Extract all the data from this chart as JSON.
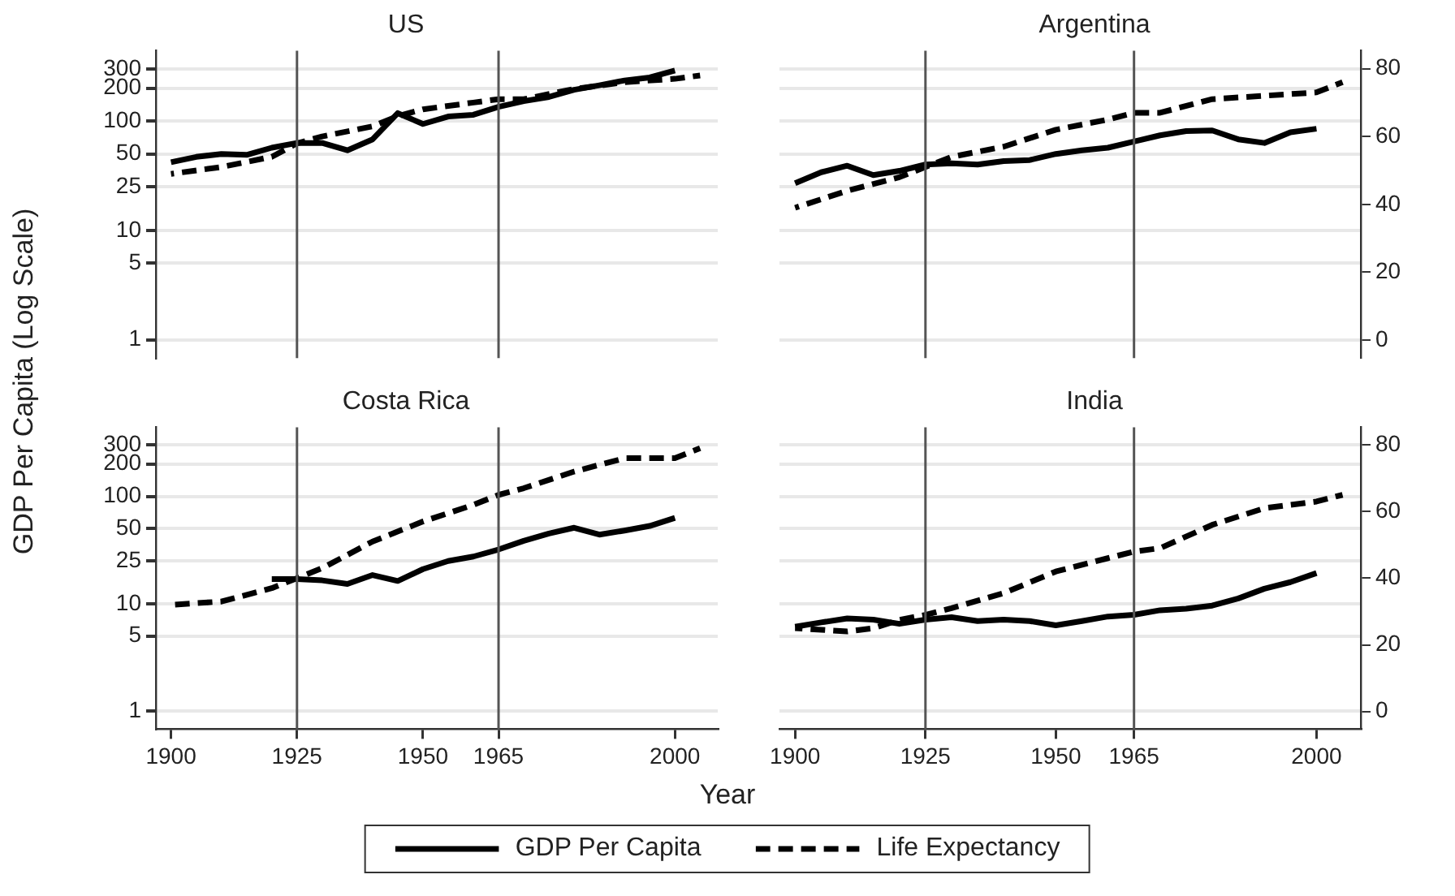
{
  "chart_data": [
    {
      "type": "line",
      "title": "US",
      "ylabel": "GDP Per Capita (Log Scale)",
      "log": "y",
      "grid": "y",
      "tick_labels": "y",
      "xlim": [
        1897,
        2008.5
      ],
      "ylim": [
        0.68,
        440
      ],
      "yticks": [
        1,
        5,
        10,
        25,
        50,
        100,
        200,
        300
      ],
      "y2lim": [
        -5.3,
        85.3
      ],
      "ref_lines": [
        {
          "axis": "x",
          "value": 1925,
          "color": "#555555"
        },
        {
          "axis": "x",
          "value": 1965,
          "color": "#555555"
        }
      ],
      "series": [
        {
          "color": "#000000",
          "line_style": "solid",
          "x": [
            1900,
            1905,
            1910,
            1915,
            1920,
            1925,
            1930,
            1935,
            1940,
            1945,
            1950,
            1955,
            1960,
            1965,
            1970,
            1975,
            1980,
            1985,
            1990,
            1995,
            2000
          ],
          "values": [
            42,
            47,
            50,
            49,
            57,
            63,
            63,
            54,
            68,
            118,
            94,
            110,
            114,
            135,
            152,
            166,
            193,
            212,
            235,
            250,
            290
          ]
        },
        {
          "color": "#000000",
          "line_style": "dashed",
          "axis": "y2",
          "x": [
            1900,
            1910,
            1920,
            1925,
            1930,
            1940,
            1945,
            1950,
            1960,
            1965,
            1970,
            1980,
            1990,
            2000,
            2005
          ],
          "values": [
            49,
            51,
            54,
            58,
            60,
            63,
            66,
            68,
            70,
            71,
            71,
            74,
            76,
            77,
            78
          ]
        }
      ]
    },
    {
      "type": "line",
      "title": "Argentina",
      "log": "y",
      "grid": "y",
      "xlim": [
        1897,
        2008.5
      ],
      "ylim": [
        0.68,
        440
      ],
      "y2lim": [
        -5.3,
        85.3
      ],
      "y2ticks": [
        0,
        20,
        40,
        60,
        80
      ],
      "ref_lines": [
        {
          "axis": "x",
          "value": 1925,
          "color": "#555555"
        },
        {
          "axis": "x",
          "value": 1965,
          "color": "#555555"
        }
      ],
      "series": [
        {
          "color": "#000000",
          "line_style": "solid",
          "x": [
            1900,
            1905,
            1910,
            1915,
            1920,
            1925,
            1930,
            1935,
            1940,
            1945,
            1950,
            1955,
            1960,
            1965,
            1970,
            1975,
            1980,
            1985,
            1990,
            1995,
            2000
          ],
          "values": [
            27,
            34,
            39,
            32,
            35,
            40,
            41,
            40,
            43,
            44,
            50,
            54,
            57,
            65,
            74,
            81,
            82,
            68,
            63,
            79,
            85
          ]
        },
        {
          "color": "#000000",
          "line_style": "dashed",
          "axis": "y2",
          "x": [
            1900,
            1910,
            1920,
            1925,
            1930,
            1940,
            1950,
            1960,
            1965,
            1970,
            1980,
            1990,
            2000,
            2005
          ],
          "values": [
            39,
            44,
            48,
            51,
            54,
            57,
            62,
            65,
            67,
            67,
            71,
            72,
            73,
            76
          ]
        }
      ]
    },
    {
      "type": "line",
      "title": "Costa Rica",
      "xlabel": "Year",
      "log": "y",
      "grid": "y",
      "xlim": [
        1897,
        2008.5
      ],
      "xticks": [
        1900,
        1925,
        1950,
        1965,
        2000
      ],
      "ylim": [
        0.68,
        440
      ],
      "yticks": [
        1,
        5,
        10,
        25,
        50,
        100,
        200,
        300
      ],
      "y2lim": [
        -5.3,
        85.3
      ],
      "ref_lines": [
        {
          "axis": "x",
          "value": 1925,
          "color": "#555555"
        },
        {
          "axis": "x",
          "value": 1965,
          "color": "#555555"
        }
      ],
      "series": [
        {
          "color": "#000000",
          "line_style": "solid",
          "x": [
            1920,
            1925,
            1930,
            1935,
            1940,
            1945,
            1950,
            1955,
            1960,
            1965,
            1970,
            1975,
            1980,
            1985,
            1990,
            1995,
            2000
          ],
          "values": [
            17,
            17,
            16.5,
            15.3,
            18.5,
            16.3,
            21,
            25,
            27.5,
            32,
            38.5,
            45,
            51,
            44,
            48,
            53,
            63
          ]
        },
        {
          "color": "#000000",
          "line_style": "dashed",
          "axis": "y2",
          "x": [
            1900,
            1910,
            1920,
            1925,
            1930,
            1940,
            1950,
            1960,
            1965,
            1970,
            1980,
            1990,
            2000,
            2005
          ],
          "values": [
            32,
            33,
            37,
            40,
            43,
            51,
            57,
            62,
            65,
            67,
            72,
            76,
            76,
            79
          ]
        }
      ]
    },
    {
      "type": "line",
      "title": "India",
      "legend": "bottom",
      "log": "y",
      "grid": "y",
      "xlim": [
        1897,
        2008.5
      ],
      "xticks": [
        1900,
        1925,
        1950,
        1965,
        2000
      ],
      "ylim": [
        0.68,
        440
      ],
      "y2lim": [
        -5.3,
        85.3
      ],
      "y2ticks": [
        0,
        20,
        40,
        60,
        80
      ],
      "ref_lines": [
        {
          "axis": "x",
          "value": 1925,
          "color": "#555555"
        },
        {
          "axis": "x",
          "value": 1965,
          "color": "#555555"
        }
      ],
      "series": [
        {
          "name": "GDP Per Capita",
          "color": "#000000",
          "line_style": "solid",
          "x": [
            1900,
            1905,
            1910,
            1915,
            1920,
            1925,
            1930,
            1935,
            1940,
            1945,
            1950,
            1955,
            1960,
            1965,
            1970,
            1975,
            1980,
            1985,
            1990,
            1995,
            2000
          ],
          "values": [
            6.1,
            6.7,
            7.3,
            7.1,
            6.5,
            7.1,
            7.5,
            6.9,
            7.1,
            6.9,
            6.3,
            6.9,
            7.6,
            7.9,
            8.7,
            9,
            9.6,
            11.2,
            13.8,
            15.9,
            19.3
          ]
        },
        {
          "name": "Life Expectancy",
          "color": "#000000",
          "line_style": "dashed",
          "axis": "y2",
          "x": [
            1900,
            1910,
            1915,
            1920,
            1925,
            1930,
            1940,
            1950,
            1960,
            1965,
            1970,
            1980,
            1990,
            2000,
            2005
          ],
          "values": [
            25,
            24,
            25,
            27.5,
            29,
            31,
            35.5,
            42,
            46,
            48,
            49,
            56,
            61,
            63,
            65
          ]
        }
      ]
    }
  ]
}
